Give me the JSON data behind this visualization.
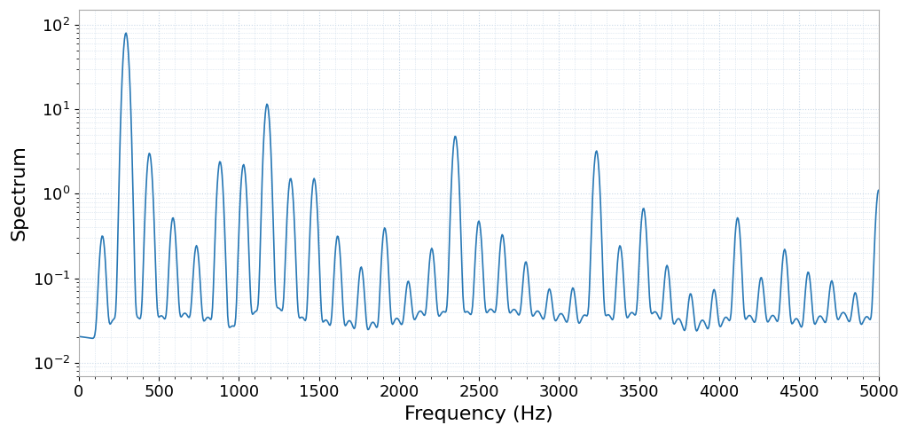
{
  "xlabel": "Frequency (Hz)",
  "ylabel": "Spectrum",
  "xlim": [
    0,
    5000
  ],
  "ylim": [
    0.007,
    150
  ],
  "line_color": "#2878b5",
  "line_width": 1.2,
  "background_color": "#ffffff",
  "grid_color": "#c8d8e8",
  "fundamental_freq": 147,
  "tick_label_fontsize": 13,
  "axis_label_fontsize": 16,
  "xticks": [
    0,
    500,
    1000,
    1500,
    2000,
    2500,
    3000,
    3500,
    4000,
    4500,
    5000
  ]
}
